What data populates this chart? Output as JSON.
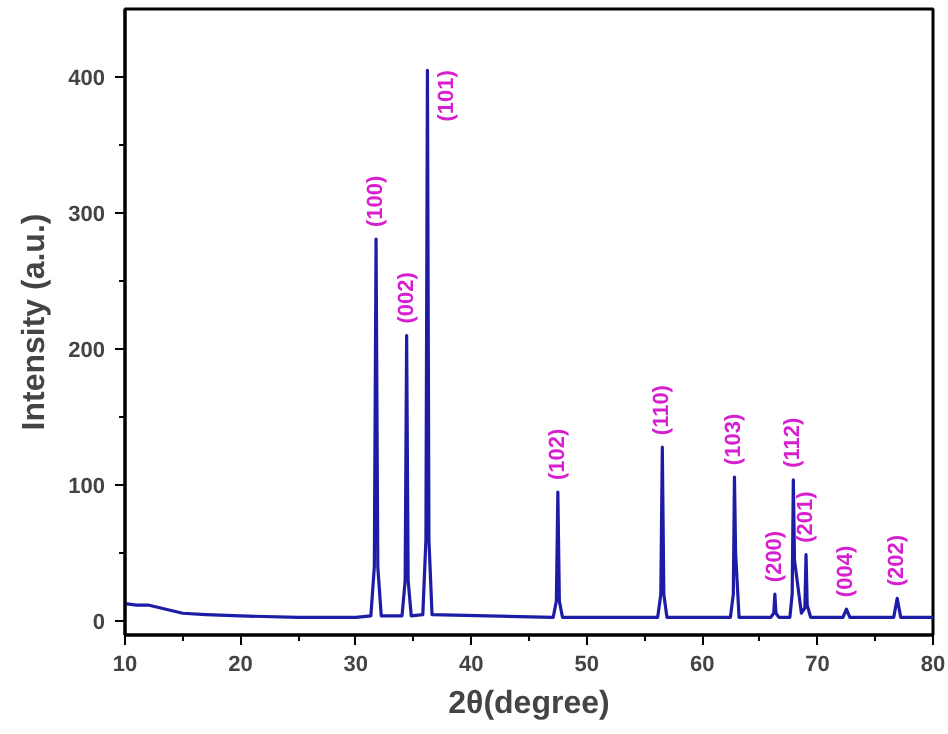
{
  "chart_data": {
    "type": "line",
    "xlabel": "2θ(degree)",
    "ylabel": "Intensity (a.u.)",
    "xlim": [
      10,
      80
    ],
    "ylim": [
      -10,
      450
    ],
    "xticks": [
      10,
      20,
      30,
      40,
      50,
      60,
      70,
      80
    ],
    "yticks": [
      0,
      100,
      200,
      300,
      400
    ],
    "grid": false,
    "marker": "none",
    "line_style": "solid",
    "series": [
      {
        "color": "#1c1ca6",
        "x": [
          10,
          11,
          12,
          13,
          14,
          15,
          17,
          20,
          25,
          30,
          31.3,
          31.6,
          31.75,
          31.9,
          32.2,
          34.0,
          34.27,
          34.4,
          34.53,
          34.8,
          35.8,
          36.07,
          36.2,
          36.33,
          36.6,
          47.1,
          47.37,
          47.5,
          47.63,
          47.9,
          56.15,
          56.42,
          56.55,
          56.68,
          56.95,
          62.45,
          62.7,
          62.8,
          62.9,
          63.2,
          65.95,
          66.2,
          66.3,
          66.4,
          66.65,
          67.6,
          67.8,
          67.9,
          68.0,
          68.6,
          68.9,
          69.0,
          69.1,
          69.4,
          72.2,
          72.5,
          72.8,
          76.6,
          76.9,
          77.2,
          80
        ],
        "values": [
          13,
          12,
          12,
          10,
          8,
          6,
          5,
          4,
          3,
          3,
          4,
          40,
          281,
          40,
          4,
          4,
          30,
          210,
          30,
          4,
          5,
          60,
          405,
          60,
          5,
          3,
          15,
          95,
          15,
          3,
          3,
          20,
          128,
          20,
          3,
          3,
          20,
          106,
          50,
          3,
          3,
          6,
          20,
          6,
          3,
          3,
          20,
          104,
          45,
          6,
          10,
          49,
          12,
          3,
          3,
          9,
          3,
          3,
          17,
          3,
          3
        ]
      }
    ],
    "annotations": [
      {
        "text": "(100)",
        "x": 31.75,
        "y": 281
      },
      {
        "text": "(002)",
        "x": 34.4,
        "y": 210
      },
      {
        "text": "(101)",
        "x": 36.2,
        "y": 405
      },
      {
        "text": "(102)",
        "x": 47.5,
        "y": 95
      },
      {
        "text": "(110)",
        "x": 56.55,
        "y": 128
      },
      {
        "text": "(103)",
        "x": 62.8,
        "y": 106
      },
      {
        "text": "(200)",
        "x": 66.3,
        "y": 20
      },
      {
        "text": "(112)",
        "x": 67.9,
        "y": 104
      },
      {
        "text": "(201)",
        "x": 69.0,
        "y": 49
      },
      {
        "text": "(004)",
        "x": 72.5,
        "y": 9
      },
      {
        "text": "(202)",
        "x": 76.9,
        "y": 17
      }
    ]
  }
}
